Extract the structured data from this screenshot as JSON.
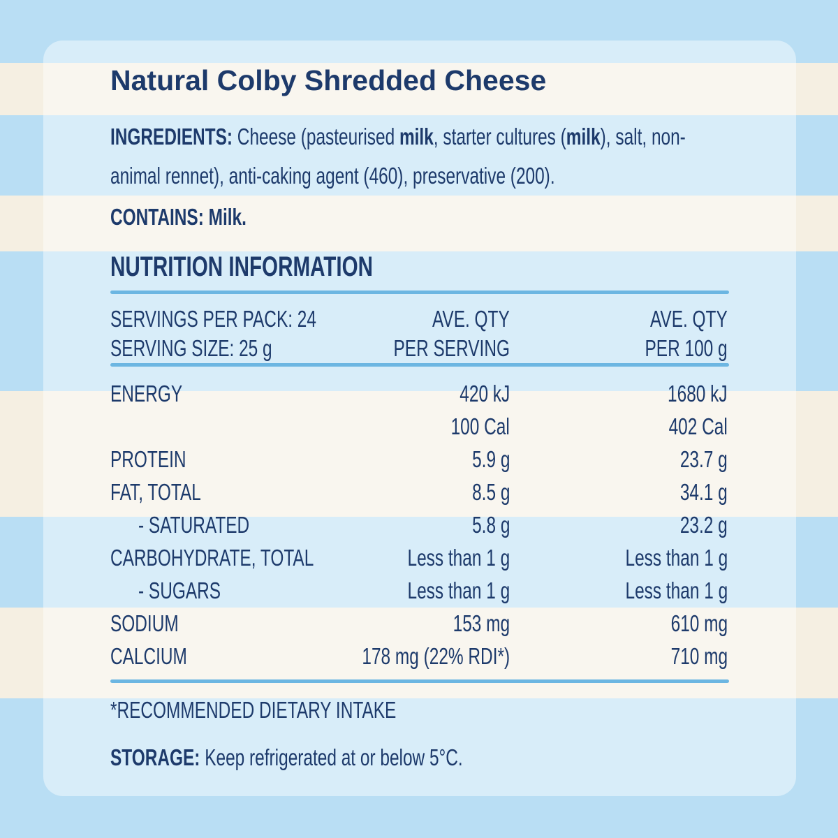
{
  "title": "Natural Colby Shredded Cheese",
  "ingredients": {
    "label": "INGREDIENTS:",
    "parts": [
      "Cheese (pasteurised ",
      "milk",
      ", starter cultures (",
      "milk",
      "), salt, non-animal rennet), anti-caking agent (460), preservative (200)."
    ]
  },
  "contains": "CONTAINS: Milk.",
  "nutrition": {
    "heading": "NUTRITION INFORMATION",
    "header": {
      "servings_per_pack": "SERVINGS PER PACK: 24",
      "serving_size": "SERVING SIZE: 25 g",
      "per_serving": [
        "AVE. QTY",
        "PER SERVING"
      ],
      "per_100g": [
        "AVE. QTY",
        "PER 100 g"
      ]
    },
    "rows": [
      {
        "label": "ENERGY",
        "per_serving": "420 kJ",
        "per_100g": "1680 kJ"
      },
      {
        "per_serving": "100 Cal",
        "per_100g": "402 Cal"
      },
      {
        "label": "PROTEIN",
        "per_serving": "5.9 g",
        "per_100g": "23.7 g"
      },
      {
        "label": "FAT, TOTAL",
        "per_serving": "8.5 g",
        "per_100g": "34.1 g"
      },
      {
        "label": "- SATURATED",
        "per_serving": "5.8 g",
        "per_100g": "23.2 g"
      },
      {
        "label": "CARBOHYDRATE, TOTAL",
        "per_serving": "Less than 1 g",
        "per_100g": "Less than 1 g"
      },
      {
        "label": "- SUGARS",
        "per_serving": "Less than 1 g",
        "per_100g": "Less than 1 g"
      },
      {
        "label": "SODIUM",
        "per_serving": "153 mg",
        "per_100g": "610 mg"
      },
      {
        "label": "CALCIUM",
        "per_serving": "178 mg (22% RDI*)",
        "per_100g": "710 mg"
      }
    ],
    "footnote": "*RECOMMENDED DIETARY INTAKE"
  },
  "storage": {
    "label": "STORAGE:",
    "text": "Keep refrigerated at or below 5°C."
  }
}
